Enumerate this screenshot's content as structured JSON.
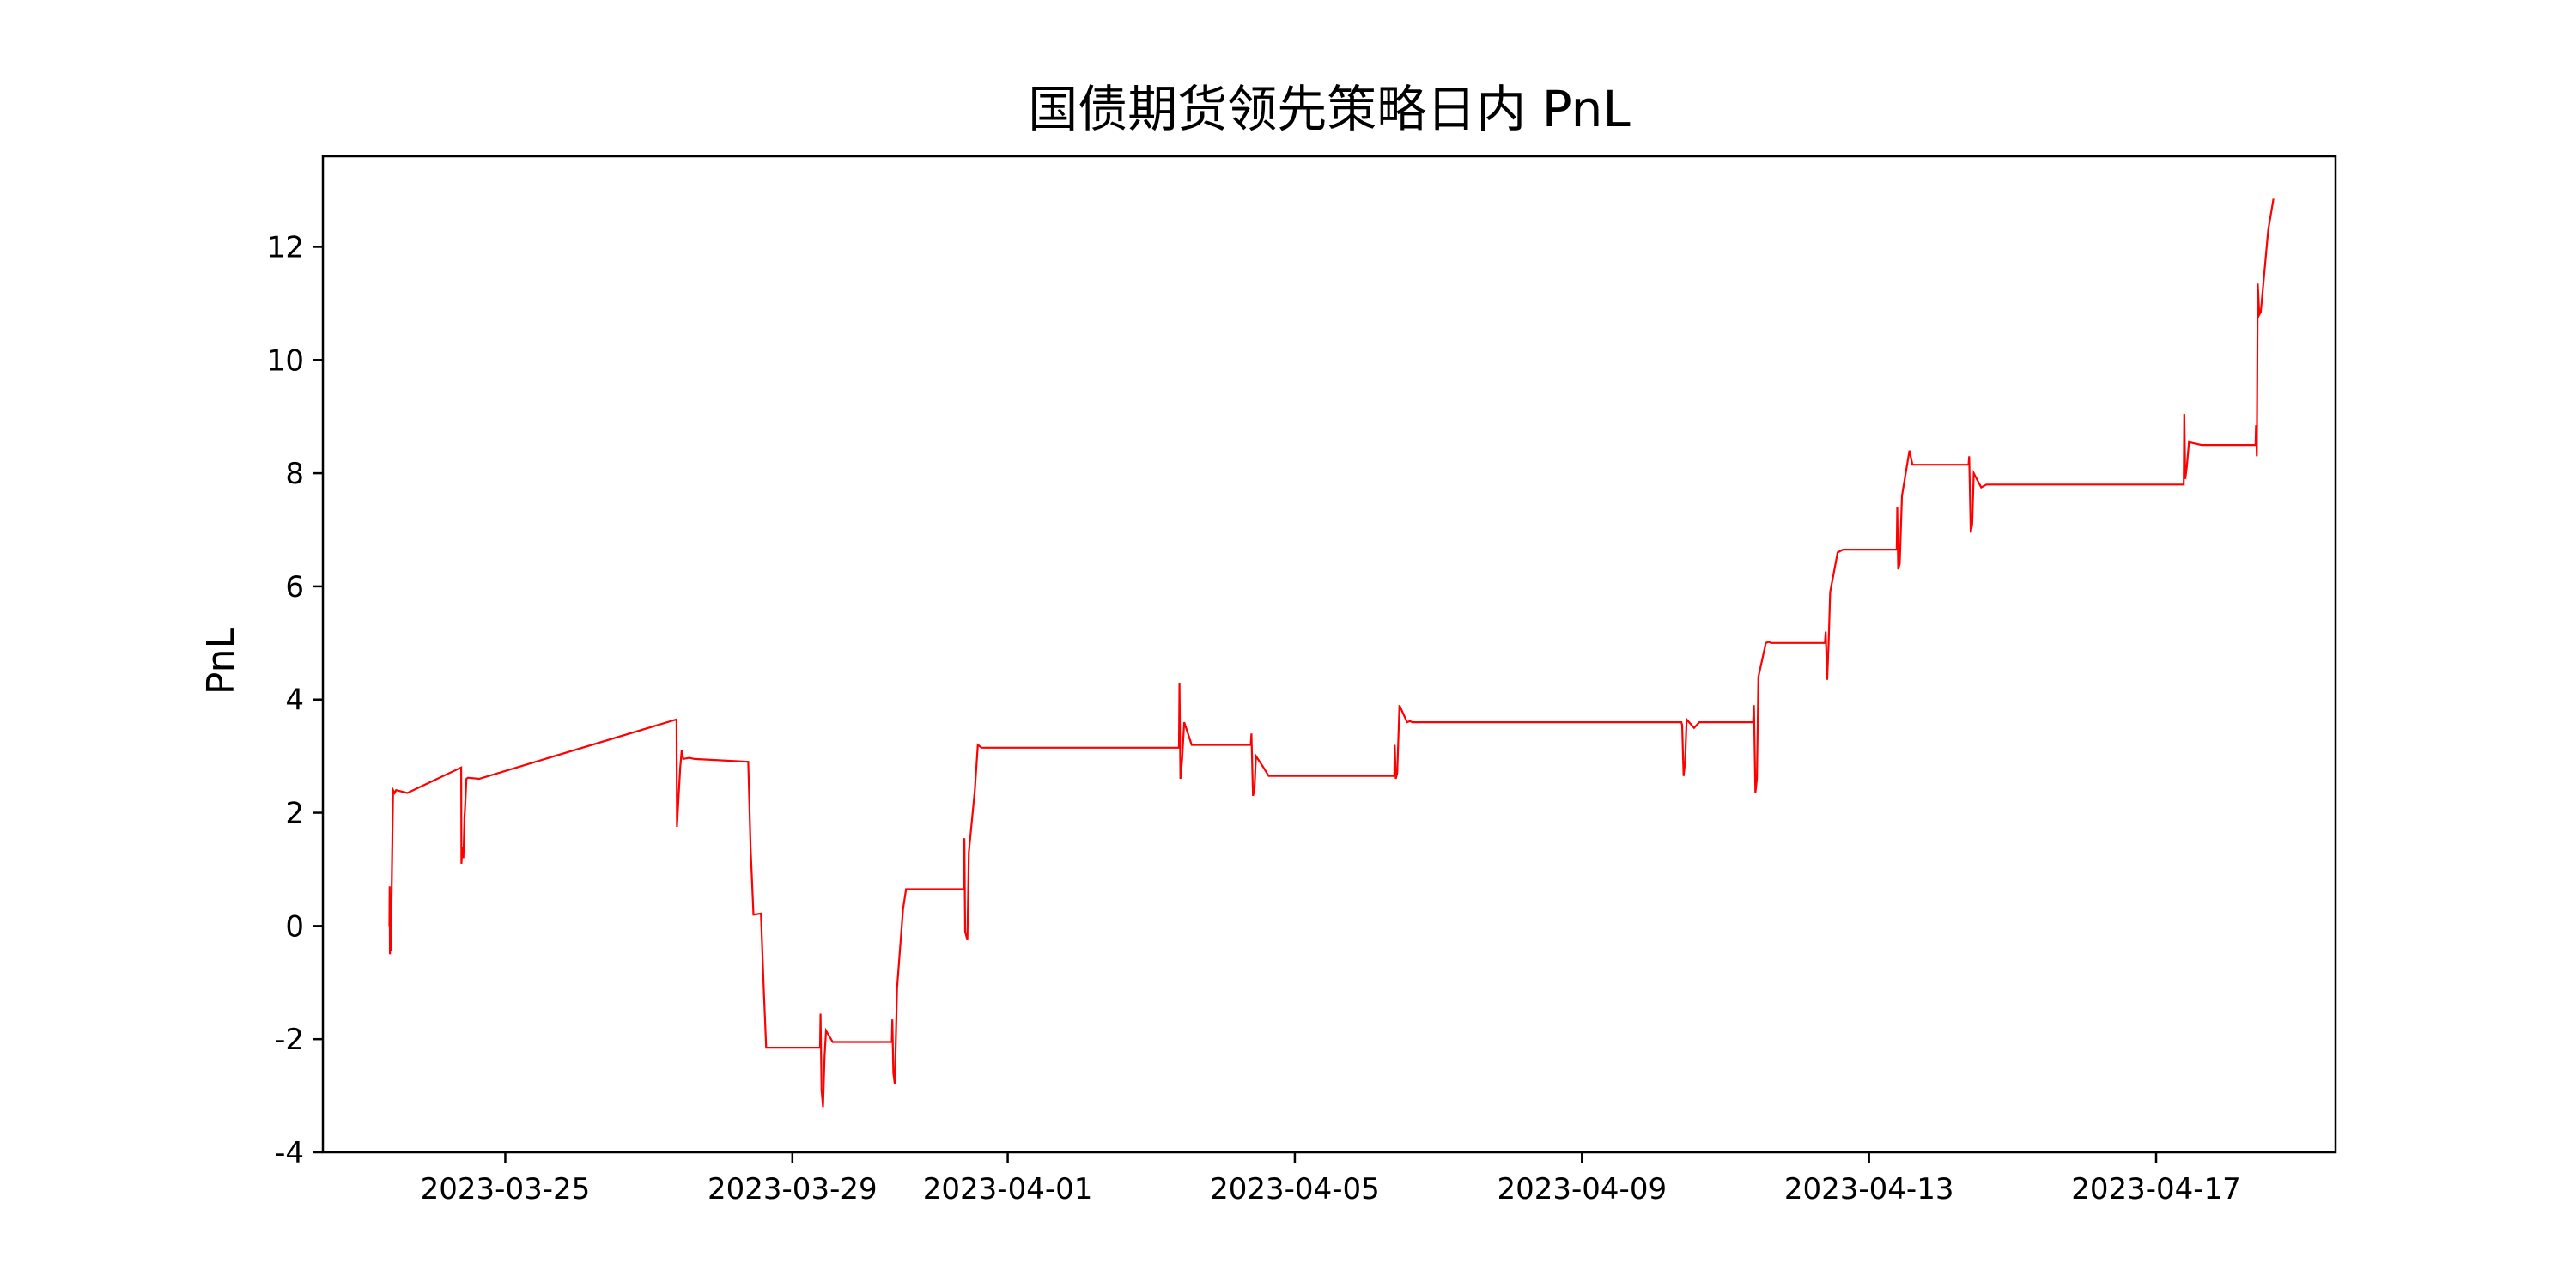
{
  "chart_data": {
    "type": "line",
    "title": "国债期货领先策略日内 PnL",
    "xlabel": "",
    "ylabel": "PnL",
    "ylim": [
      -4,
      13.6
    ],
    "xlim": [
      "2023-03-22T11:00",
      "2023-04-19T12:00"
    ],
    "grid": false,
    "legend": "none",
    "line_color": "#ff0000",
    "y_ticks": [
      -4,
      -2,
      0,
      2,
      4,
      6,
      8,
      10,
      12
    ],
    "x_ticks": [
      "2023-03-25",
      "2023-03-29",
      "2023-04-01",
      "2023-04-05",
      "2023-04-09",
      "2023-04-13",
      "2023-04-17"
    ],
    "series": [
      {
        "x": [
          "2023-03-23T09:15",
          "2023-03-23T09:20",
          "2023-03-23T09:25",
          "2023-03-23T09:30",
          "2023-03-23T09:45",
          "2023-03-23T10:00",
          "2023-03-23T10:15",
          "2023-03-23T10:30",
          "2023-03-23T11:00",
          "2023-03-23T11:30",
          "2023-03-23T15:15",
          "2023-03-24T09:15",
          "2023-03-24T09:20",
          "2023-03-24T09:40",
          "2023-03-24T10:00",
          "2023-03-24T10:20",
          "2023-03-24T10:40",
          "2023-03-24T11:00",
          "2023-03-24T11:30",
          "2023-03-24T15:15",
          "2023-03-27T09:15",
          "2023-03-27T09:25",
          "2023-03-27T09:45",
          "2023-03-27T10:30",
          "2023-03-27T11:00",
          "2023-03-27T11:30",
          "2023-03-27T13:30",
          "2023-03-27T15:15",
          "2023-03-28T09:15",
          "2023-03-28T10:00",
          "2023-03-28T11:00",
          "2023-03-28T13:30",
          "2023-03-28T14:30",
          "2023-03-28T15:15",
          "2023-03-29T09:15",
          "2023-03-29T09:25",
          "2023-03-29T09:45",
          "2023-03-29T10:15",
          "2023-03-29T10:45",
          "2023-03-29T11:15",
          "2023-03-29T13:30",
          "2023-03-29T15:15",
          "2023-03-30T09:15",
          "2023-03-30T09:25",
          "2023-03-30T09:45",
          "2023-03-30T10:15",
          "2023-03-30T11:00",
          "2023-03-30T13:00",
          "2023-03-30T14:00",
          "2023-03-30T15:15",
          "2023-03-31T09:15",
          "2023-03-31T09:30",
          "2023-03-31T09:45",
          "2023-03-31T10:30",
          "2023-03-31T11:00",
          "2023-03-31T13:00",
          "2023-03-31T14:00",
          "2023-03-31T15:15",
          "2023-04-03T09:15",
          "2023-04-03T09:25",
          "2023-04-03T09:45",
          "2023-04-03T10:15",
          "2023-04-03T11:00",
          "2023-04-03T13:30",
          "2023-04-03T15:15",
          "2023-04-04T09:15",
          "2023-04-04T09:30",
          "2023-04-04T10:00",
          "2023-04-04T10:30",
          "2023-04-04T11:00",
          "2023-04-04T13:30",
          "2023-04-04T15:15",
          "2023-04-06T09:15",
          "2023-04-06T09:25",
          "2023-04-06T09:45",
          "2023-04-06T10:15",
          "2023-04-06T11:00",
          "2023-04-06T13:30",
          "2023-04-06T14:30",
          "2023-04-06T15:15",
          "2023-04-10T09:15",
          "2023-04-10T09:30",
          "2023-04-10T10:00",
          "2023-04-10T10:30",
          "2023-04-10T11:00",
          "2023-04-10T13:30",
          "2023-04-10T15:15",
          "2023-04-11T09:15",
          "2023-04-11T09:30",
          "2023-04-11T10:00",
          "2023-04-11T10:30",
          "2023-04-11T11:00",
          "2023-04-11T13:30",
          "2023-04-11T14:30",
          "2023-04-11T15:15",
          "2023-04-12T09:15",
          "2023-04-12T09:30",
          "2023-04-12T10:00",
          "2023-04-12T10:30",
          "2023-04-12T11:00",
          "2023-04-12T13:30",
          "2023-04-12T15:15",
          "2023-04-13T09:15",
          "2023-04-13T09:25",
          "2023-04-13T09:45",
          "2023-04-13T10:15",
          "2023-04-13T11:00",
          "2023-04-13T13:30",
          "2023-04-13T14:30",
          "2023-04-13T15:15",
          "2023-04-14T09:15",
          "2023-04-14T09:30",
          "2023-04-14T10:00",
          "2023-04-14T10:30",
          "2023-04-14T11:00",
          "2023-04-14T13:30",
          "2023-04-14T15:15",
          "2023-04-17T09:15",
          "2023-04-17T09:25",
          "2023-04-17T09:45",
          "2023-04-17T10:15",
          "2023-04-17T11:00",
          "2023-04-17T13:30",
          "2023-04-17T15:15",
          "2023-04-18T09:15",
          "2023-04-18T09:25",
          "2023-04-18T09:40",
          "2023-04-18T10:00",
          "2023-04-18T10:30",
          "2023-04-18T11:00",
          "2023-04-18T13:30",
          "2023-04-18T15:15"
        ],
        "y": [
          0.0,
          0.7,
          -0.5,
          -0.3,
          -0.45,
          0.6,
          1.6,
          2.4,
          2.35,
          2.4,
          2.35,
          2.8,
          1.1,
          1.4,
          1.2,
          1.9,
          2.2,
          2.6,
          2.62,
          2.6,
          3.65,
          1.75,
          2.1,
          2.8,
          3.1,
          2.95,
          2.97,
          2.95,
          2.9,
          1.4,
          0.2,
          0.22,
          -1.2,
          -2.15,
          -2.15,
          -1.55,
          -2.9,
          -3.2,
          -2.3,
          -1.85,
          -2.05,
          -2.05,
          -2.05,
          -1.65,
          -2.6,
          -2.8,
          -1.1,
          0.3,
          0.65,
          0.65,
          0.65,
          1.55,
          -0.1,
          -0.25,
          1.3,
          2.4,
          3.2,
          3.15,
          3.15,
          4.3,
          2.6,
          2.9,
          3.6,
          3.2,
          3.2,
          3.2,
          3.4,
          2.3,
          2.4,
          3.0,
          2.8,
          2.65,
          2.65,
          3.2,
          2.6,
          2.7,
          3.9,
          3.6,
          3.62,
          3.6,
          3.6,
          3.55,
          2.65,
          2.9,
          3.65,
          3.5,
          3.6,
          3.6,
          3.9,
          2.35,
          2.6,
          4.4,
          5.0,
          5.02,
          5.0,
          5.0,
          5.2,
          4.35,
          5.0,
          5.9,
          6.6,
          6.65,
          6.65,
          7.4,
          6.3,
          6.4,
          7.6,
          8.4,
          8.15,
          8.15,
          8.15,
          8.3,
          6.95,
          7.1,
          8.0,
          7.75,
          7.8,
          7.8,
          9.05,
          7.9,
          8.1,
          8.55,
          8.52,
          8.5,
          8.5,
          8.85,
          8.3,
          11.35,
          10.8,
          10.85,
          12.3,
          12.85
        ]
      }
    ]
  }
}
